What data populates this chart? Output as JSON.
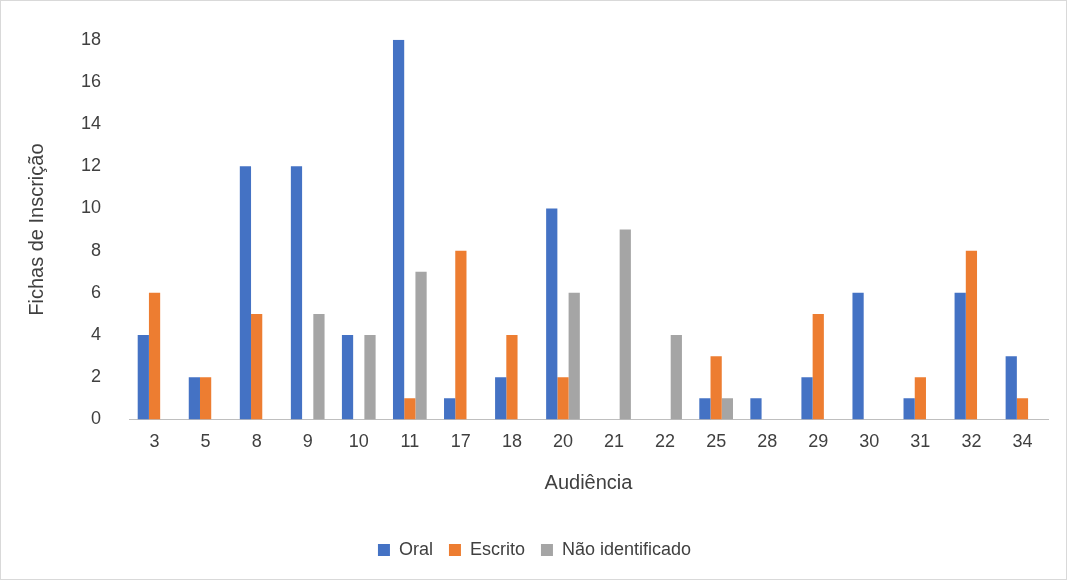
{
  "chart_data": {
    "type": "bar",
    "xlabel": "Audiência",
    "ylabel": "Fichas de Inscrição",
    "categories": [
      "3",
      "5",
      "8",
      "9",
      "10",
      "11",
      "17",
      "18",
      "20",
      "21",
      "22",
      "25",
      "28",
      "29",
      "30",
      "31",
      "32",
      "34"
    ],
    "series": [
      {
        "name": "Oral",
        "color": "#4472c4",
        "values": [
          4,
          2,
          12,
          12,
          4,
          18,
          1,
          2,
          10,
          0,
          0,
          1,
          1,
          2,
          6,
          1,
          6,
          3
        ]
      },
      {
        "name": "Escrito",
        "color": "#ed7d31",
        "values": [
          6,
          2,
          5,
          0,
          0,
          1,
          8,
          4,
          2,
          0,
          0,
          3,
          0,
          5,
          0,
          2,
          8,
          1
        ]
      },
      {
        "name": "Não identificado",
        "color": "#a5a5a5",
        "values": [
          0,
          0,
          0,
          5,
          4,
          7,
          0,
          0,
          6,
          9,
          4,
          1,
          0,
          0,
          0,
          0,
          0,
          0
        ]
      }
    ],
    "ylim": [
      0,
      18
    ],
    "yticks": [
      0,
      2,
      4,
      6,
      8,
      10,
      12,
      14,
      16,
      18
    ],
    "grid": false,
    "legend": "bottom"
  }
}
